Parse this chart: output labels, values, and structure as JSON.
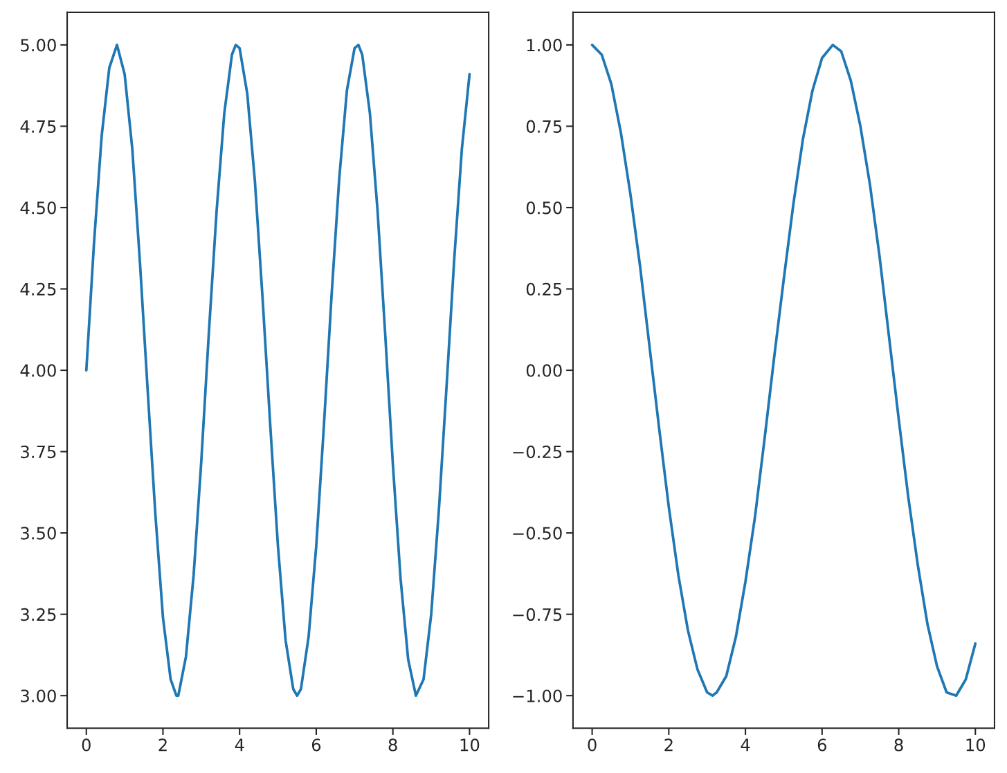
{
  "chart_data": [
    {
      "type": "line",
      "x": [
        0,
        0.2,
        0.4,
        0.6,
        0.8,
        1.0,
        1.2,
        1.4,
        1.6,
        1.8,
        2.0,
        2.2,
        2.35,
        2.4,
        2.6,
        2.8,
        3.0,
        3.2,
        3.4,
        3.6,
        3.8,
        3.9,
        4.0,
        4.2,
        4.4,
        4.6,
        4.8,
        5.0,
        5.2,
        5.4,
        5.5,
        5.6,
        5.8,
        6.0,
        6.2,
        6.4,
        6.6,
        6.8,
        7.0,
        7.1,
        7.2,
        7.4,
        7.6,
        7.8,
        8.0,
        8.2,
        8.4,
        8.6,
        8.8,
        9.0,
        9.2,
        9.4,
        9.6,
        9.8,
        10.0
      ],
      "series": [
        {
          "color": "#1f77b4",
          "values": [
            4.0,
            4.39,
            4.72,
            4.93,
            5.0,
            4.91,
            4.68,
            4.33,
            3.94,
            3.56,
            3.24,
            3.05,
            3.0,
            3.0,
            3.12,
            3.37,
            3.72,
            4.12,
            4.49,
            4.79,
            4.97,
            5.0,
            4.99,
            4.85,
            4.58,
            4.22,
            3.83,
            3.46,
            3.17,
            3.02,
            3.0,
            3.02,
            3.18,
            3.46,
            3.83,
            4.23,
            4.59,
            4.86,
            4.99,
            5.0,
            4.97,
            4.79,
            4.49,
            4.11,
            3.71,
            3.36,
            3.11,
            3.0,
            3.05,
            3.25,
            3.57,
            3.95,
            4.34,
            4.68,
            4.91
          ]
        }
      ],
      "xlim": [
        -0.5,
        10.5
      ],
      "ylim": [
        2.9,
        5.1
      ],
      "xticks": [
        0,
        2,
        4,
        6,
        8,
        10
      ],
      "yticks": [
        {
          "value": 3,
          "label": "3.00"
        },
        {
          "value": 3.25,
          "label": "3.25"
        },
        {
          "value": 3.5,
          "label": "3.50"
        },
        {
          "value": 3.75,
          "label": "3.75"
        },
        {
          "value": 4,
          "label": "4.00"
        },
        {
          "value": 4.25,
          "label": "4.25"
        },
        {
          "value": 4.5,
          "label": "4.50"
        },
        {
          "value": 4.75,
          "label": "4.75"
        },
        {
          "value": 5,
          "label": "5.00"
        }
      ]
    },
    {
      "type": "line",
      "x": [
        0,
        0.25,
        0.5,
        0.75,
        1.0,
        1.25,
        1.5,
        1.75,
        2.0,
        2.25,
        2.5,
        2.75,
        3.0,
        3.14,
        3.25,
        3.5,
        3.75,
        4.0,
        4.25,
        4.5,
        4.75,
        5.0,
        5.25,
        5.5,
        5.75,
        6.0,
        6.28,
        6.5,
        6.75,
        7.0,
        7.25,
        7.5,
        7.75,
        8.0,
        8.25,
        8.5,
        8.75,
        9.0,
        9.25,
        9.5,
        9.75,
        10.0
      ],
      "series": [
        {
          "color": "#1f77b4",
          "values": [
            1.0,
            0.97,
            0.88,
            0.73,
            0.54,
            0.32,
            0.07,
            -0.18,
            -0.42,
            -0.63,
            -0.8,
            -0.92,
            -0.99,
            -1.0,
            -0.99,
            -0.94,
            -0.82,
            -0.65,
            -0.45,
            -0.21,
            0.04,
            0.28,
            0.51,
            0.71,
            0.86,
            0.96,
            1.0,
            0.98,
            0.89,
            0.75,
            0.57,
            0.35,
            0.1,
            -0.15,
            -0.39,
            -0.6,
            -0.78,
            -0.91,
            -0.99,
            -1.0,
            -0.95,
            -0.84
          ]
        }
      ],
      "xlim": [
        -0.5,
        10.5
      ],
      "ylim": [
        -1.1,
        1.1
      ],
      "xticks": [
        0,
        2,
        4,
        6,
        8,
        10
      ],
      "yticks": [
        {
          "value": -1,
          "label": "−1.00"
        },
        {
          "value": -0.75,
          "label": "−0.75"
        },
        {
          "value": -0.5,
          "label": "−0.50"
        },
        {
          "value": -0.25,
          "label": "−0.25"
        },
        {
          "value": 0,
          "label": "0.00"
        },
        {
          "value": 0.25,
          "label": "0.25"
        },
        {
          "value": 0.5,
          "label": "0.50"
        },
        {
          "value": 0.75,
          "label": "0.75"
        },
        {
          "value": 1,
          "label": "1.00"
        }
      ]
    }
  ]
}
